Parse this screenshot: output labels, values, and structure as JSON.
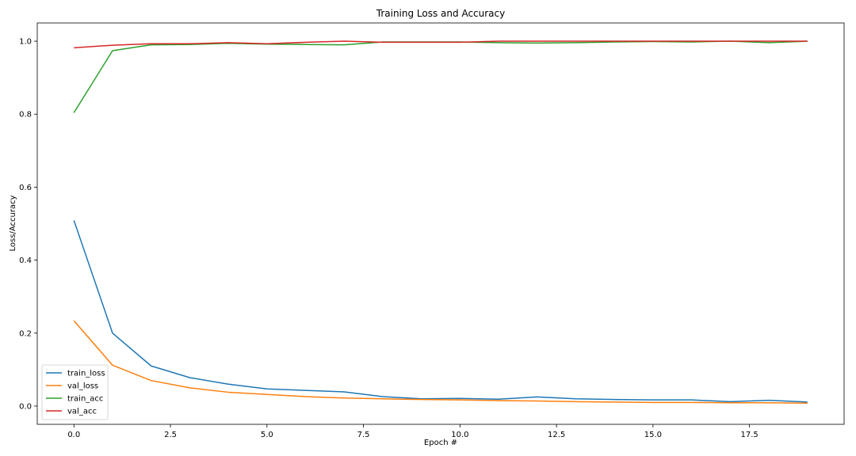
{
  "chart_data": {
    "type": "line",
    "title": "Training Loss and Accuracy",
    "xlabel": "Epoch #",
    "ylabel": "Loss/Accuracy",
    "xlim": [
      -0.95,
      19.95
    ],
    "ylim": [
      -0.05,
      1.05
    ],
    "xticks": [
      0,
      2.5,
      5,
      7.5,
      10,
      12.5,
      15,
      17.5
    ],
    "xtick_labels": [
      "0.0",
      "2.5",
      "5.0",
      "7.5",
      "10.0",
      "12.5",
      "15.0",
      "17.5"
    ],
    "yticks": [
      0,
      0.2,
      0.4,
      0.6,
      0.8,
      1.0
    ],
    "ytick_labels": [
      "0.0",
      "0.2",
      "0.4",
      "0.6",
      "0.8",
      "1.0"
    ],
    "grid": false,
    "legend_position": "lower-left",
    "x": [
      0,
      1,
      2,
      3,
      4,
      5,
      6,
      7,
      8,
      9,
      10,
      11,
      12,
      13,
      14,
      15,
      16,
      17,
      18,
      19
    ],
    "series": [
      {
        "name": "train_loss",
        "color": "#1f77b4",
        "values": [
          0.509,
          0.2,
          0.11,
          0.078,
          0.06,
          0.047,
          0.043,
          0.039,
          0.026,
          0.02,
          0.021,
          0.019,
          0.025,
          0.02,
          0.018,
          0.017,
          0.017,
          0.012,
          0.016,
          0.011
        ]
      },
      {
        "name": "val_loss",
        "color": "#ff7f0e",
        "values": [
          0.234,
          0.112,
          0.07,
          0.05,
          0.038,
          0.032,
          0.026,
          0.022,
          0.02,
          0.018,
          0.017,
          0.015,
          0.014,
          0.012,
          0.011,
          0.01,
          0.01,
          0.009,
          0.009,
          0.008
        ]
      },
      {
        "name": "train_acc",
        "color": "#2ca02c",
        "values": [
          0.804,
          0.974,
          0.99,
          0.991,
          0.994,
          0.992,
          0.991,
          0.99,
          0.998,
          0.998,
          0.998,
          0.996,
          0.995,
          0.996,
          0.998,
          0.999,
          0.998,
          1.0,
          0.996,
          1.0
        ]
      },
      {
        "name": "val_acc",
        "color": "#d62728",
        "values": [
          0.982,
          0.989,
          0.993,
          0.993,
          0.996,
          0.993,
          0.997,
          1.0,
          0.997,
          0.997,
          0.997,
          1.0,
          1.0,
          1.0,
          1.0,
          1.0,
          1.0,
          1.0,
          1.0,
          1.0
        ]
      }
    ]
  }
}
